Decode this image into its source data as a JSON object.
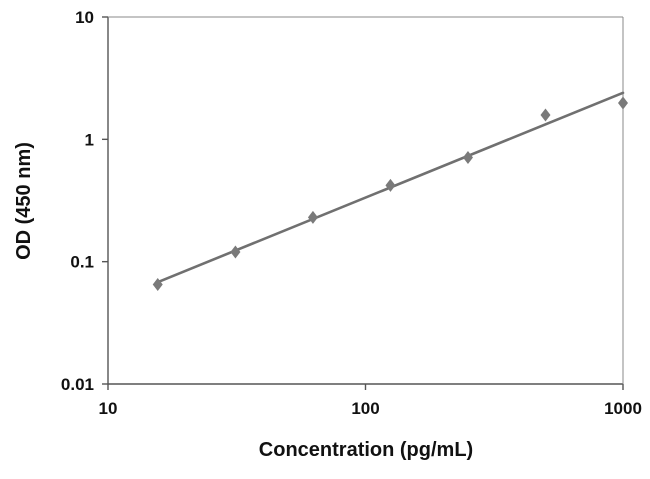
{
  "chart_data": {
    "type": "scatter",
    "xlabel": "Concentration (pg/mL)",
    "ylabel": "OD (450 nm)",
    "x_scale": "log",
    "y_scale": "log",
    "xlim": [
      10,
      1000
    ],
    "ylim": [
      0.01,
      10
    ],
    "x_ticks": [
      10,
      100,
      1000
    ],
    "x_tick_labels": [
      "10",
      "100",
      "1000"
    ],
    "y_ticks": [
      0.01,
      0.1,
      1,
      10
    ],
    "y_tick_labels": [
      "0.01",
      "0.1",
      "1",
      "10"
    ],
    "grid": false,
    "legend": "none",
    "series": [
      {
        "marker": "diamond",
        "color": "#7a7a7a",
        "x": [
          15.6,
          31.25,
          62.5,
          125,
          250,
          500,
          1000
        ],
        "y": [
          0.065,
          0.12,
          0.23,
          0.42,
          0.71,
          1.58,
          1.98
        ]
      }
    ],
    "trendline": {
      "type": "power",
      "color": "#707070",
      "x": [
        15.6,
        1000
      ],
      "y": [
        0.068,
        2.4
      ]
    }
  }
}
